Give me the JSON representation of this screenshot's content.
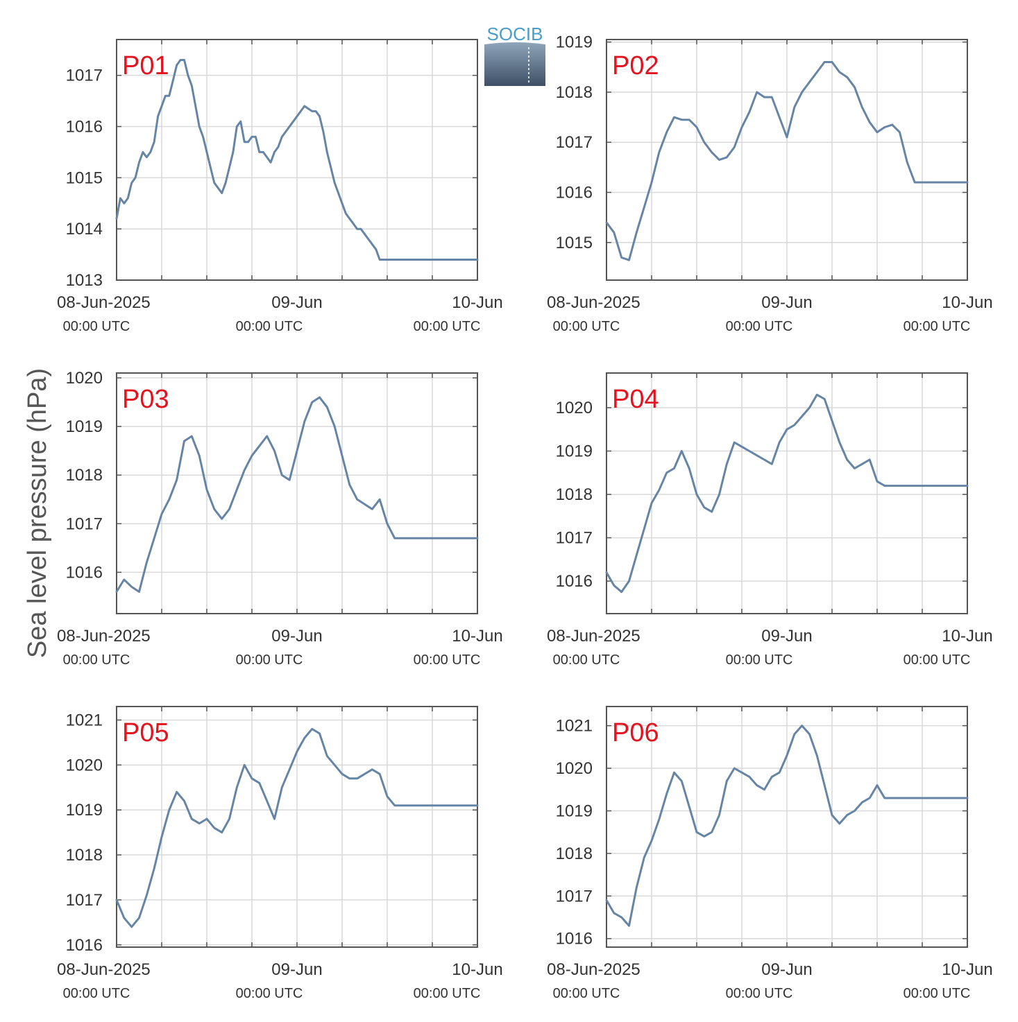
{
  "figure": {
    "ylabel": "Sea level pressure (hPa)",
    "logo_text": "SOCIB",
    "series_color": "#6685a6",
    "label_color": "#e3141f",
    "x_ticks": [
      {
        "main": "08-Jun-2025",
        "sub": "00:00 UTC"
      },
      {
        "main": "09-Jun",
        "sub": "00:00 UTC"
      },
      {
        "main": "10-Jun",
        "sub": "00:00 UTC"
      }
    ]
  },
  "chart_data": [
    {
      "type": "line",
      "panel": "P01",
      "grid": true,
      "xlim": [
        0,
        48
      ],
      "ylim": [
        1013,
        1017.7
      ],
      "yticks": [
        1013,
        1014,
        1015,
        1016,
        1017
      ],
      "x": [
        0,
        0.5,
        1,
        1.5,
        2,
        2.5,
        3,
        3.5,
        4,
        4.5,
        5,
        5.5,
        6,
        6.5,
        7,
        7.5,
        8,
        8.5,
        9,
        9.5,
        10,
        10.5,
        11,
        11.5,
        12,
        12.5,
        13,
        13.5,
        14,
        14.5,
        15,
        15.5,
        16,
        16.5,
        17,
        17.5,
        18,
        18.5,
        19,
        19.5,
        20,
        20.5,
        21,
        21.5,
        22,
        22.5,
        23,
        23.5,
        24,
        24.5,
        25,
        25.5,
        26,
        26.5,
        27,
        27.5,
        28,
        28.5,
        29,
        29.5,
        30,
        30.5,
        31,
        31.5,
        32,
        32.5,
        33,
        33.5,
        34,
        34.5,
        35,
        35.5,
        36,
        36.5,
        37,
        37.5,
        38,
        38.5,
        39,
        39.5,
        40,
        40.5,
        41,
        41.5,
        42,
        42.5,
        43,
        43.5,
        44,
        44.5,
        45,
        45.5,
        46,
        46.5,
        47,
        47.5,
        48
      ],
      "y": [
        1014.2,
        1014.6,
        1014.5,
        1014.6,
        1014.9,
        1015.0,
        1015.3,
        1015.5,
        1015.4,
        1015.5,
        1015.7,
        1016.2,
        1016.4,
        1016.6,
        1016.6,
        1016.9,
        1017.2,
        1017.3,
        1017.3,
        1017.0,
        1016.8,
        1016.4,
        1016.0,
        1015.8,
        1015.5,
        1015.2,
        1014.9,
        1014.8,
        1014.7,
        1014.9,
        1015.2,
        1015.5,
        1016.0,
        1016.1,
        1015.7,
        1015.7,
        1015.8,
        1015.8,
        1015.5,
        1015.5,
        1015.4,
        1015.3,
        1015.5,
        1015.6,
        1015.8,
        1015.9,
        1016.0,
        1016.1,
        1016.2,
        1016.3,
        1016.4,
        1016.35,
        1016.3,
        1016.3,
        1016.2,
        1015.9,
        1015.5,
        1015.2,
        1014.9,
        1014.7,
        1014.5,
        1014.3,
        1014.2,
        1014.1,
        1014.0,
        1014.0,
        1013.9,
        1013.8,
        1013.7,
        1013.6,
        1013.4,
        1013.4,
        1013.4,
        1013.4,
        1013.4,
        1013.4,
        1013.4,
        1013.4,
        1013.4,
        1013.4,
        1013.4,
        1013.4,
        1013.4,
        1013.4,
        1013.4,
        1013.4,
        1013.4,
        1013.4,
        1013.4,
        1013.4,
        1013.4,
        1013.4,
        1013.4,
        1013.4,
        1013.4,
        1013.4,
        1013.4
      ]
    },
    {
      "type": "line",
      "panel": "P02",
      "grid": true,
      "xlim": [
        0,
        48
      ],
      "ylim": [
        1014.25,
        1019.05
      ],
      "yticks": [
        1015,
        1016,
        1017,
        1018,
        1019
      ],
      "x": [
        0,
        1,
        2,
        3,
        4,
        5,
        6,
        7,
        8,
        9,
        10,
        11,
        12,
        13,
        14,
        15,
        16,
        17,
        18,
        19,
        20,
        21,
        22,
        23,
        24,
        25,
        26,
        27,
        28,
        29,
        30,
        31,
        32,
        33,
        34,
        35,
        36,
        37,
        38,
        39,
        40,
        41,
        42,
        43,
        44,
        45,
        46,
        47,
        48
      ],
      "y": [
        1015.4,
        1015.2,
        1014.7,
        1014.65,
        1015.2,
        1015.7,
        1016.2,
        1016.8,
        1017.2,
        1017.5,
        1017.45,
        1017.45,
        1017.3,
        1017.0,
        1016.8,
        1016.65,
        1016.7,
        1016.9,
        1017.3,
        1017.6,
        1018.0,
        1017.9,
        1017.9,
        1017.5,
        1017.1,
        1017.7,
        1018.0,
        1018.2,
        1018.4,
        1018.6,
        1018.6,
        1018.4,
        1018.3,
        1018.1,
        1017.7,
        1017.4,
        1017.2,
        1017.3,
        1017.35,
        1017.2,
        1016.6,
        1016.2,
        1016.2,
        1016.2,
        1016.2,
        1016.2,
        1016.2,
        1016.2,
        1016.2
      ]
    },
    {
      "type": "line",
      "panel": "P03",
      "grid": true,
      "xlim": [
        0,
        48
      ],
      "ylim": [
        1015.15,
        1020.1
      ],
      "yticks": [
        1016,
        1017,
        1018,
        1019,
        1020
      ],
      "x": [
        0,
        1,
        2,
        3,
        4,
        5,
        6,
        7,
        8,
        9,
        10,
        11,
        12,
        13,
        14,
        15,
        16,
        17,
        18,
        19,
        20,
        21,
        22,
        23,
        24,
        25,
        26,
        27,
        28,
        29,
        30,
        31,
        32,
        33,
        34,
        35,
        36,
        37,
        38,
        39,
        40,
        41,
        42,
        43,
        44,
        45,
        46,
        47,
        48
      ],
      "y": [
        1015.6,
        1015.85,
        1015.7,
        1015.6,
        1016.2,
        1016.7,
        1017.2,
        1017.5,
        1017.9,
        1018.7,
        1018.8,
        1018.4,
        1017.7,
        1017.3,
        1017.1,
        1017.3,
        1017.7,
        1018.1,
        1018.4,
        1018.6,
        1018.8,
        1018.5,
        1018.0,
        1017.9,
        1018.5,
        1019.1,
        1019.5,
        1019.6,
        1019.4,
        1019.0,
        1018.4,
        1017.8,
        1017.5,
        1017.4,
        1017.3,
        1017.5,
        1017.0,
        1016.7,
        1016.7,
        1016.7,
        1016.7,
        1016.7,
        1016.7,
        1016.7,
        1016.7,
        1016.7,
        1016.7,
        1016.7,
        1016.7
      ]
    },
    {
      "type": "line",
      "panel": "P04",
      "grid": true,
      "xlim": [
        0,
        48
      ],
      "ylim": [
        1015.25,
        1020.8
      ],
      "yticks": [
        1016,
        1017,
        1018,
        1019,
        1020
      ],
      "x": [
        0,
        1,
        2,
        3,
        4,
        5,
        6,
        7,
        8,
        9,
        10,
        11,
        12,
        13,
        14,
        15,
        16,
        17,
        18,
        19,
        20,
        21,
        22,
        23,
        24,
        25,
        26,
        27,
        28,
        29,
        30,
        31,
        32,
        33,
        34,
        35,
        36,
        37,
        38,
        39,
        40,
        41,
        42,
        43,
        44,
        45,
        46,
        47,
        48
      ],
      "y": [
        1016.2,
        1015.9,
        1015.75,
        1016.0,
        1016.6,
        1017.2,
        1017.8,
        1018.1,
        1018.5,
        1018.6,
        1019.0,
        1018.6,
        1018.0,
        1017.7,
        1017.6,
        1018.0,
        1018.7,
        1019.2,
        1019.1,
        1019.0,
        1018.9,
        1018.8,
        1018.7,
        1019.2,
        1019.5,
        1019.6,
        1019.8,
        1020.0,
        1020.3,
        1020.2,
        1019.7,
        1019.2,
        1018.8,
        1018.6,
        1018.7,
        1018.8,
        1018.3,
        1018.2,
        1018.2,
        1018.2,
        1018.2,
        1018.2,
        1018.2,
        1018.2,
        1018.2,
        1018.2,
        1018.2,
        1018.2,
        1018.2
      ]
    },
    {
      "type": "line",
      "panel": "P05",
      "grid": true,
      "xlim": [
        0,
        48
      ],
      "ylim": [
        1015.95,
        1021.3
      ],
      "yticks": [
        1016,
        1017,
        1018,
        1019,
        1020,
        1021
      ],
      "x": [
        0,
        1,
        2,
        3,
        4,
        5,
        6,
        7,
        8,
        9,
        10,
        11,
        12,
        13,
        14,
        15,
        16,
        17,
        18,
        19,
        20,
        21,
        22,
        23,
        24,
        25,
        26,
        27,
        28,
        29,
        30,
        31,
        32,
        33,
        34,
        35,
        36,
        37,
        38,
        39,
        40,
        41,
        42,
        43,
        44,
        45,
        46,
        47,
        48
      ],
      "y": [
        1017.0,
        1016.6,
        1016.4,
        1016.6,
        1017.1,
        1017.7,
        1018.4,
        1019.0,
        1019.4,
        1019.2,
        1018.8,
        1018.7,
        1018.8,
        1018.6,
        1018.5,
        1018.8,
        1019.5,
        1020.0,
        1019.7,
        1019.6,
        1019.2,
        1018.8,
        1019.5,
        1019.9,
        1020.3,
        1020.6,
        1020.8,
        1020.7,
        1020.2,
        1020.0,
        1019.8,
        1019.7,
        1019.7,
        1019.8,
        1019.9,
        1019.8,
        1019.3,
        1019.1,
        1019.1,
        1019.1,
        1019.1,
        1019.1,
        1019.1,
        1019.1,
        1019.1,
        1019.1,
        1019.1,
        1019.1,
        1019.1
      ]
    },
    {
      "type": "line",
      "panel": "P06",
      "grid": true,
      "xlim": [
        0,
        48
      ],
      "ylim": [
        1015.8,
        1021.45
      ],
      "yticks": [
        1016,
        1017,
        1018,
        1019,
        1020,
        1021
      ],
      "x": [
        0,
        1,
        2,
        3,
        4,
        5,
        6,
        7,
        8,
        9,
        10,
        11,
        12,
        13,
        14,
        15,
        16,
        17,
        18,
        19,
        20,
        21,
        22,
        23,
        24,
        25,
        26,
        27,
        28,
        29,
        30,
        31,
        32,
        33,
        34,
        35,
        36,
        37,
        38,
        39,
        40,
        41,
        42,
        43,
        44,
        45,
        46,
        47,
        48
      ],
      "y": [
        1016.9,
        1016.6,
        1016.5,
        1016.3,
        1017.2,
        1017.9,
        1018.3,
        1018.8,
        1019.4,
        1019.9,
        1019.7,
        1019.1,
        1018.5,
        1018.4,
        1018.5,
        1018.9,
        1019.7,
        1020.0,
        1019.9,
        1019.8,
        1019.6,
        1019.5,
        1019.8,
        1019.9,
        1020.3,
        1020.8,
        1021.0,
        1020.8,
        1020.3,
        1019.6,
        1018.9,
        1018.7,
        1018.9,
        1019.0,
        1019.2,
        1019.3,
        1019.6,
        1019.3,
        1019.3,
        1019.3,
        1019.3,
        1019.3,
        1019.3,
        1019.3,
        1019.3,
        1019.3,
        1019.3,
        1019.3,
        1019.3
      ]
    }
  ]
}
